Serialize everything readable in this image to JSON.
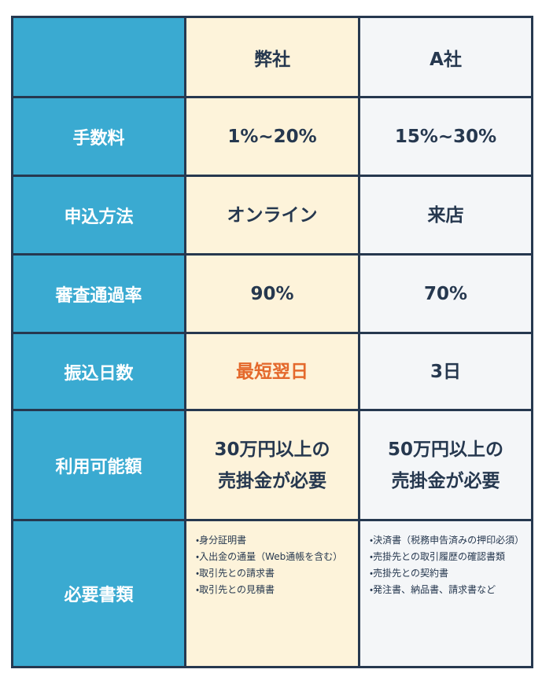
{
  "header": {
    "company": "弊社",
    "competitor": "A社"
  },
  "rows": [
    {
      "label": "手数料",
      "ours": [
        "1%~20%"
      ],
      "theirs": [
        "15%~30%"
      ]
    },
    {
      "label": "申込方法",
      "ours": [
        "オンライン"
      ],
      "theirs": [
        "来店"
      ]
    },
    {
      "label": "審査通過率",
      "ours": [
        "90%"
      ],
      "theirs": [
        "70%"
      ]
    },
    {
      "label": "振込日数",
      "ours": [
        "最短翌日"
      ],
      "theirs": [
        "3日"
      ],
      "ours_color": "#e4692c"
    },
    {
      "label": "利用可能額",
      "ours": [
        "30万円以上の",
        "売掛金が必要"
      ],
      "theirs": [
        "50万円以上の",
        "売掛金が必要"
      ]
    },
    {
      "label": "必要書類",
      "list": true,
      "ours": [
        "・身分証明書",
        "・入出金の通量（Web通帳を含む）",
        "・取引先との請求書",
        "・取引先との見積書"
      ],
      "theirs": [
        "・決済書（税務申告済みの押印必須）",
        "・売掛先との取引履歴の確認書類",
        "・売掛先との契約書",
        "・発注書、納品書、請求書など"
      ]
    }
  ]
}
